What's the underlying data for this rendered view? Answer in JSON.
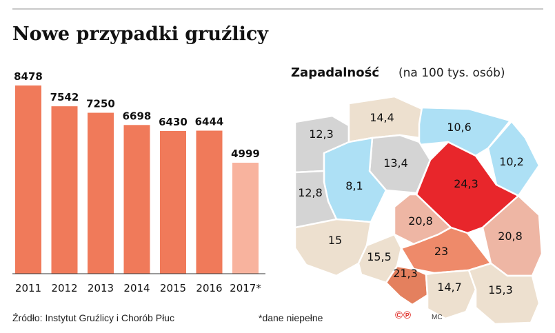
{
  "title": "Nowe przypadki gruźlicy",
  "chart_data": [
    {
      "type": "bar",
      "categories": [
        "2011",
        "2012",
        "2013",
        "2014",
        "2015",
        "2016",
        "2017*"
      ],
      "values": [
        8478,
        7542,
        7250,
        6698,
        6430,
        6444,
        4999
      ],
      "value_labels": [
        "8478",
        "7542",
        "7250",
        "6698",
        "6430",
        "6444",
        "4999"
      ],
      "ylim": [
        0,
        8478
      ],
      "colors": [
        "#f07a5a",
        "#f07a5a",
        "#f07a5a",
        "#f07a5a",
        "#f07a5a",
        "#f07a5a",
        "#f8b39e"
      ],
      "grid": false
    },
    {
      "type": "choropleth",
      "title": "Zapadalność",
      "subtitle": "(na 100 tys. osób)",
      "regions": [
        {
          "value": 12.3,
          "label": "12,3",
          "color": "#d4d4d4"
        },
        {
          "value": 14.4,
          "label": "14,4",
          "color": "#ede0cf"
        },
        {
          "value": 10.6,
          "label": "10,6",
          "color": "#ade0f5"
        },
        {
          "value": 10.2,
          "label": "10,2",
          "color": "#ade0f5"
        },
        {
          "value": 13.4,
          "label": "13,4",
          "color": "#d4d4d4"
        },
        {
          "value": 8.1,
          "label": "8,1",
          "color": "#ade0f5"
        },
        {
          "value": 24.3,
          "label": "24,3",
          "color": "#e8262b"
        },
        {
          "value": 12.8,
          "label": "12,8",
          "color": "#d4d4d4"
        },
        {
          "value": 20.8,
          "label": "20,8",
          "color": "#eeb6a4"
        },
        {
          "value": 20.8,
          "label": "20,8",
          "color": "#eeb6a4"
        },
        {
          "value": 15,
          "label": "15",
          "color": "#ede0cf"
        },
        {
          "value": 15.5,
          "label": "15,5",
          "color": "#ede0cf"
        },
        {
          "value": 23,
          "label": "23",
          "color": "#ee8a6a"
        },
        {
          "value": 21.3,
          "label": "21,3",
          "color": "#e4805e"
        },
        {
          "value": 14.7,
          "label": "14,7",
          "color": "#ede0cf"
        },
        {
          "value": 15.3,
          "label": "15,3",
          "color": "#ede0cf"
        }
      ]
    }
  ],
  "footer": {
    "source": "Źródło:  Instytut Gruźlicy i Chorób Płuc",
    "note": "*dane niepełne",
    "copyright": "©℗",
    "author": "MC"
  }
}
